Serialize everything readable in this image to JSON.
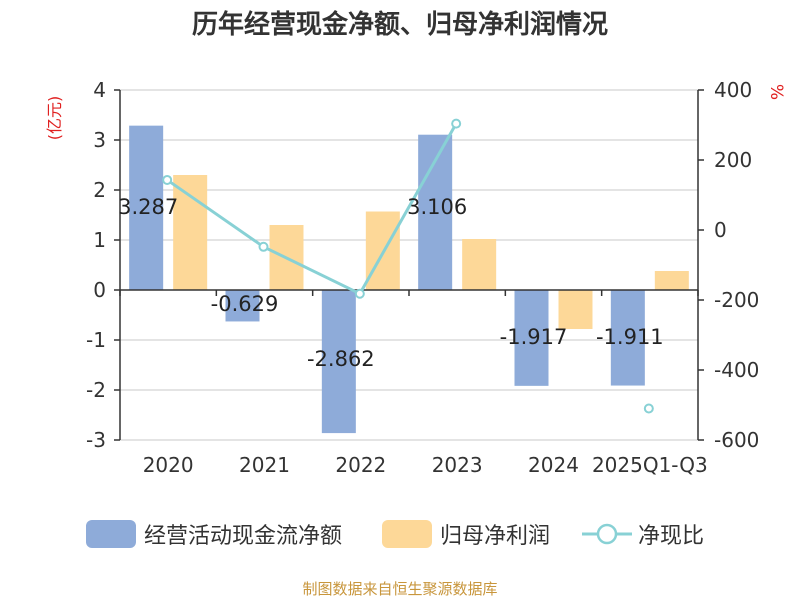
{
  "title": "历年经营现金净额、归母净利润情况",
  "source": "制图数据来自恒生聚源数据库",
  "source_color": "#c8963c",
  "colors": {
    "cash_flow": "#8eabd9",
    "net_profit": "#fdd898",
    "ratio": "#88d1d5",
    "axis_unit": "#e02020"
  },
  "legend": {
    "cash_flow": "经营活动现金流净额",
    "net_profit": "归母净利润",
    "ratio": "净现比"
  },
  "chart_data": {
    "type": "bar",
    "categories": [
      "2020",
      "2021",
      "2022",
      "2023",
      "2024",
      "2025Q1-Q3"
    ],
    "left_axis": {
      "unit": "(亿元)",
      "ylim": [
        -3,
        4
      ],
      "ticks": [
        -3,
        -2,
        -1,
        0,
        1,
        2,
        3,
        4
      ]
    },
    "right_axis": {
      "unit": "%",
      "ylim": [
        -600,
        400
      ],
      "ticks": [
        -600,
        -400,
        -200,
        0,
        200,
        400
      ]
    },
    "grid": true,
    "legend_position": "bottom",
    "series": [
      {
        "name": "经营活动现金流净额",
        "type": "bar",
        "axis": "left",
        "values": [
          3.287,
          -0.629,
          -2.862,
          3.106,
          -1.917,
          -1.911
        ],
        "labels": [
          "3.287",
          "-0.629",
          "-2.862",
          "3.106",
          "-1.917",
          "-1.911"
        ]
      },
      {
        "name": "归母净利润",
        "type": "bar",
        "axis": "left",
        "values": [
          2.3,
          1.3,
          1.57,
          1.02,
          -0.78,
          0.38
        ]
      },
      {
        "name": "净现比",
        "type": "line",
        "axis": "right",
        "values": [
          143,
          -48,
          -182,
          304,
          null,
          -510
        ]
      }
    ]
  }
}
